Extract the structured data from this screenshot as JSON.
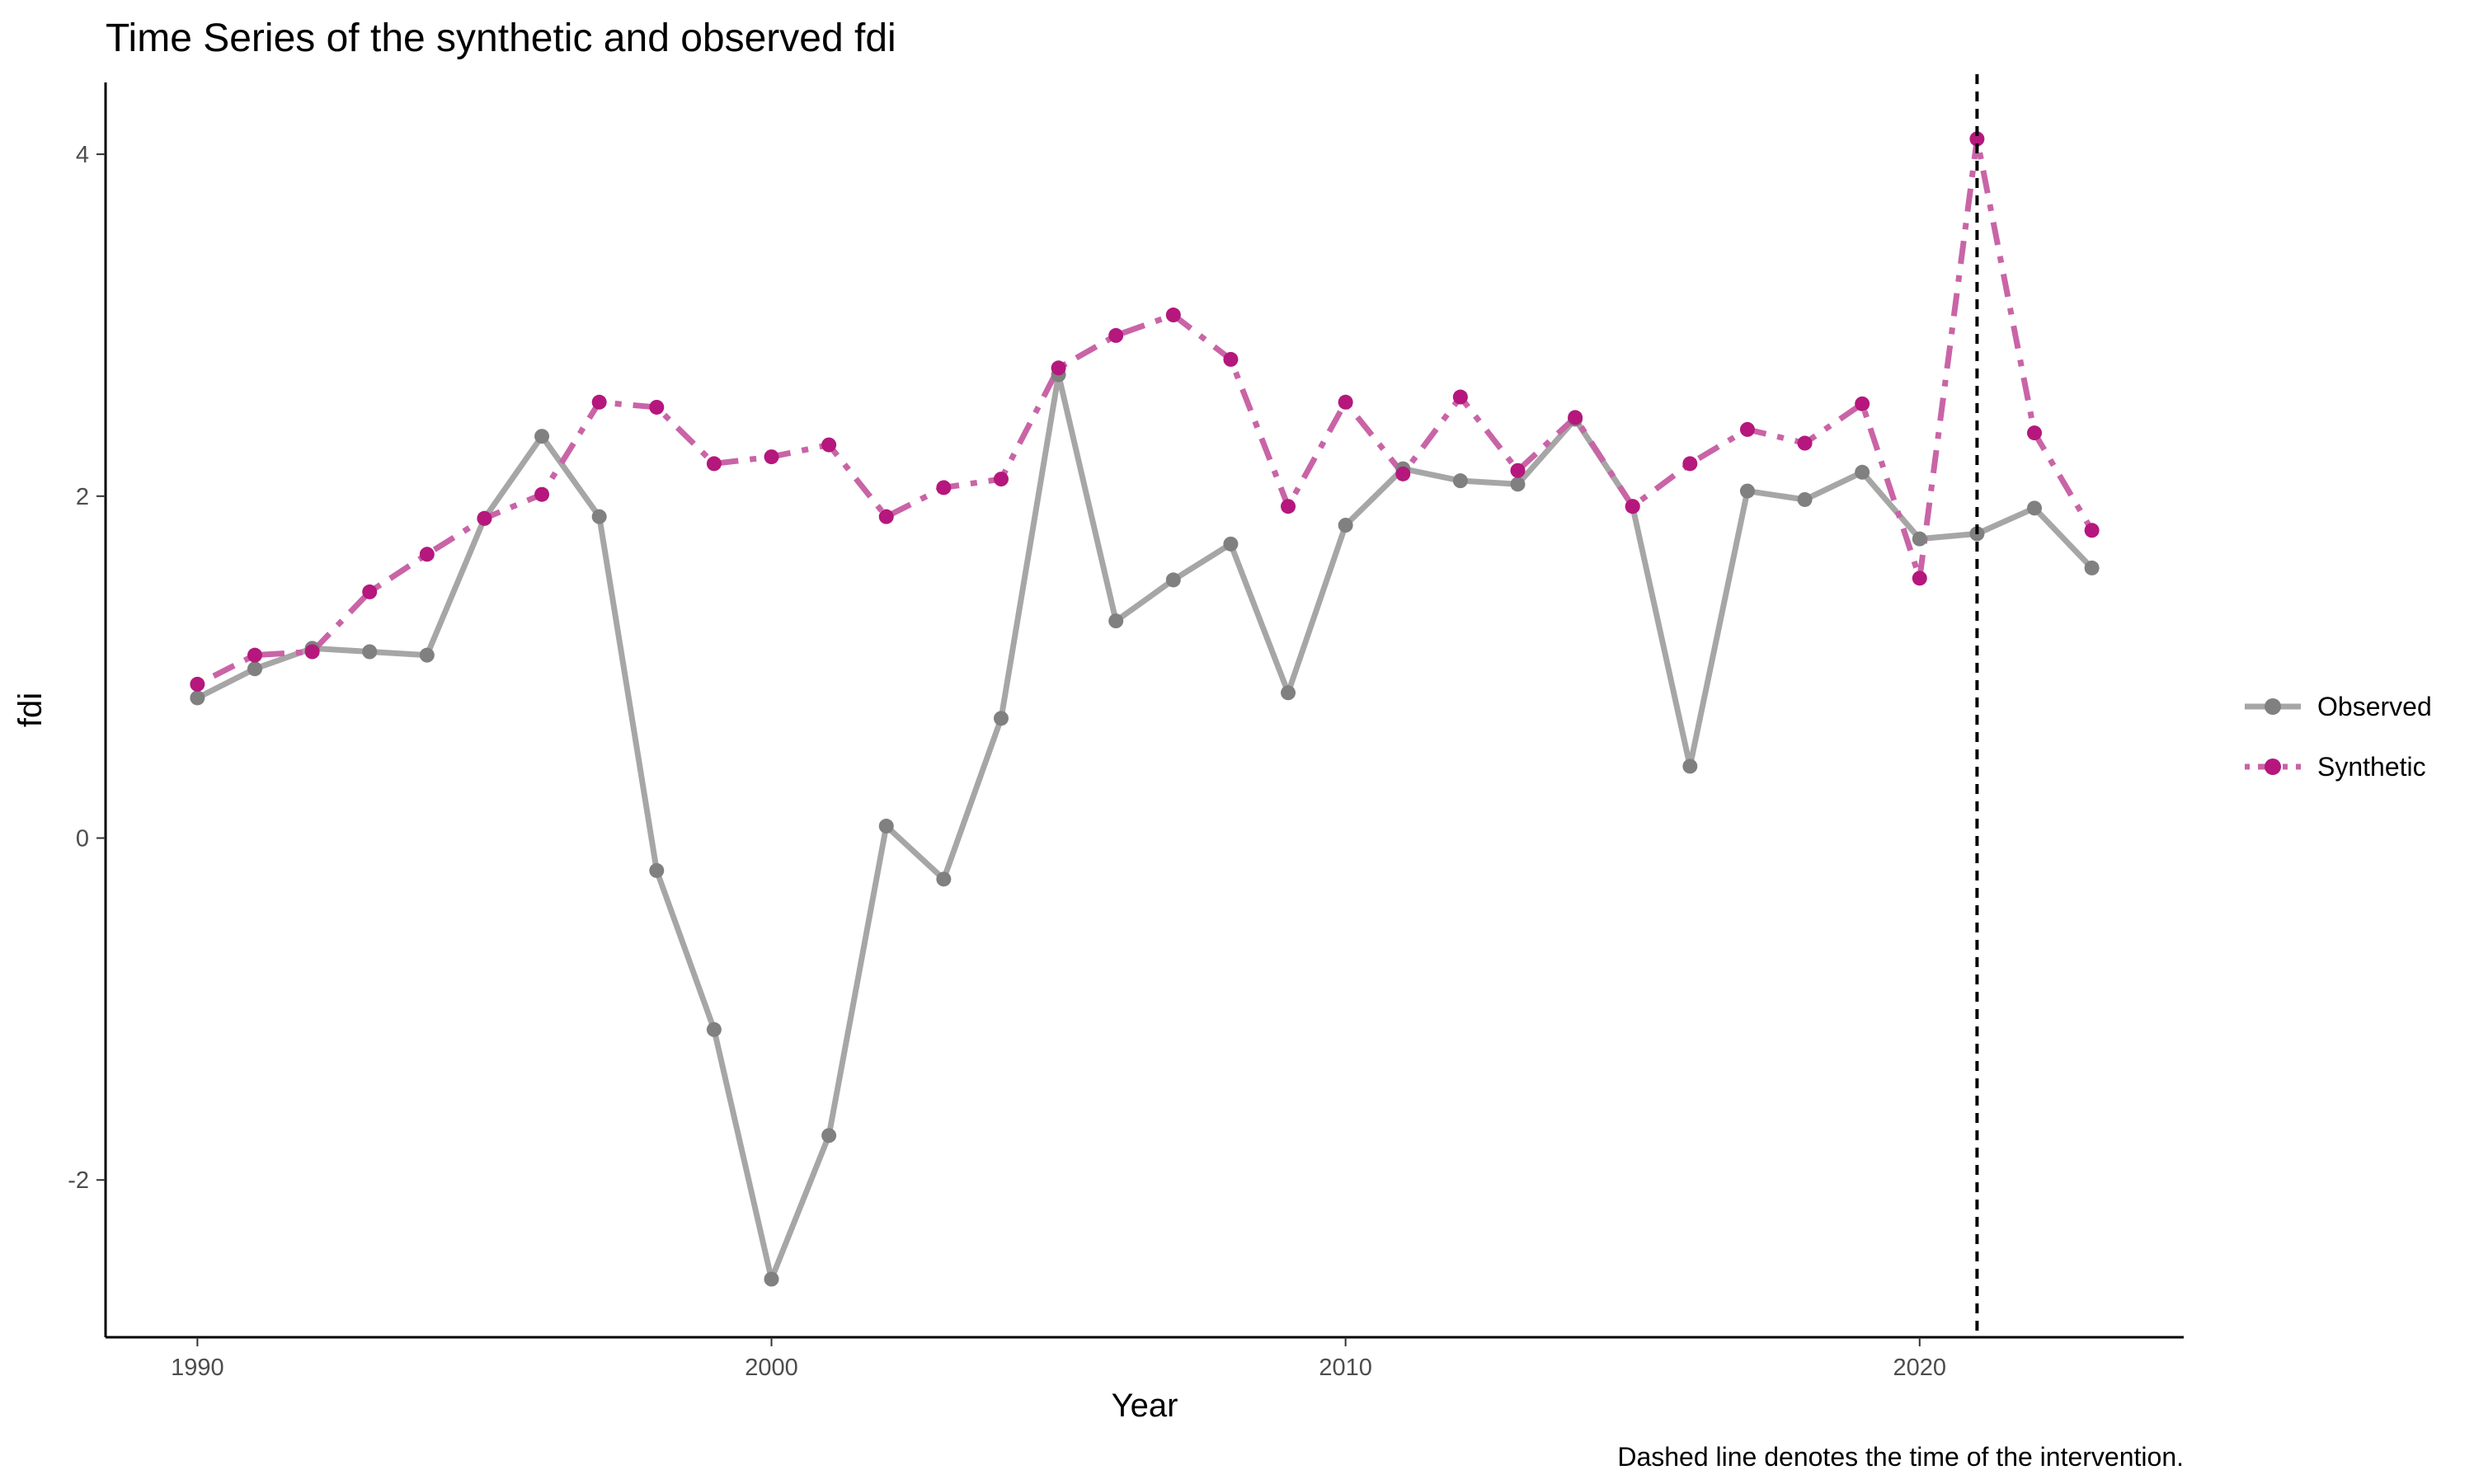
{
  "chart_data": {
    "type": "line",
    "title": "Time Series of the synthetic and observed fdi",
    "xlabel": "Year",
    "ylabel": "fdi",
    "caption": "Dashed line denotes the time of the intervention.",
    "xlim": [
      1988.4,
      2024.6
    ],
    "ylim": [
      -2.92,
      4.42
    ],
    "x_ticks": [
      1990,
      2000,
      2010,
      2020
    ],
    "y_ticks": [
      -2,
      0,
      2,
      4
    ],
    "intervention_year": 2021,
    "grid": false,
    "legend_position": "right",
    "x": [
      1990,
      1991,
      1992,
      1993,
      1994,
      1995,
      1996,
      1997,
      1998,
      1999,
      2000,
      2001,
      2002,
      2003,
      2004,
      2005,
      2006,
      2007,
      2008,
      2009,
      2010,
      2011,
      2012,
      2013,
      2014,
      2015,
      2016,
      2017,
      2018,
      2019,
      2020,
      2021,
      2022,
      2023
    ],
    "series": [
      {
        "name": "Observed",
        "color": "#808080",
        "line_color": "#a6a6a6",
        "line_style": "solid",
        "values": [
          0.82,
          0.99,
          1.11,
          1.09,
          1.07,
          1.87,
          2.35,
          1.88,
          -0.19,
          -1.12,
          -2.58,
          -1.74,
          0.07,
          -0.24,
          0.7,
          2.71,
          1.27,
          1.51,
          1.72,
          0.85,
          1.83,
          2.16,
          2.09,
          2.07,
          2.45,
          1.94,
          0.42,
          2.03,
          1.98,
          2.14,
          1.75,
          1.78,
          1.93,
          1.58
        ]
      },
      {
        "name": "Synthetic",
        "color": "#b5177d",
        "line_color": "#c964a6",
        "line_style": "dotdash",
        "values": [
          0.9,
          1.07,
          1.09,
          1.44,
          1.66,
          1.87,
          2.01,
          2.55,
          2.52,
          2.19,
          2.23,
          2.3,
          1.88,
          2.05,
          2.1,
          2.75,
          2.94,
          3.06,
          2.8,
          1.94,
          2.55,
          2.13,
          2.58,
          2.15,
          2.46,
          1.94,
          2.19,
          2.39,
          2.31,
          2.54,
          1.52,
          4.09,
          2.37,
          1.8
        ]
      }
    ]
  }
}
